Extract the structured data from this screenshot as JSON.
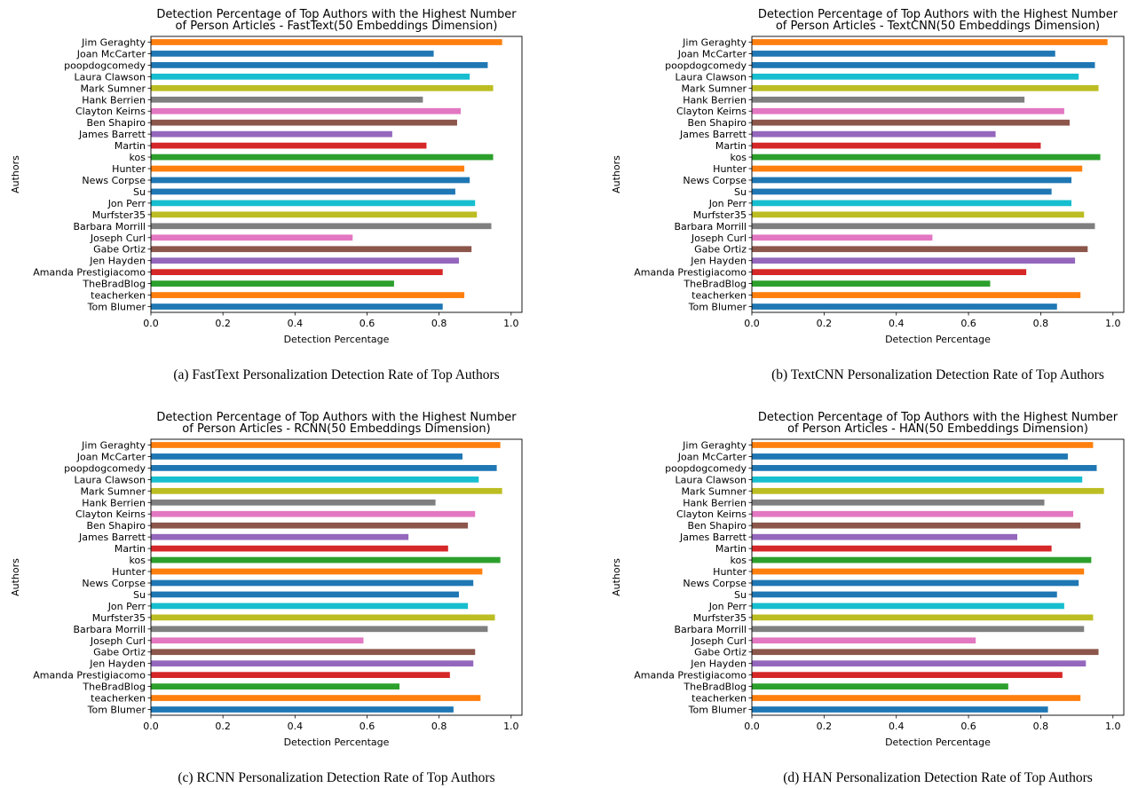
{
  "figure": {
    "colors": [
      "#ff7f0e",
      "#1f77b4",
      "#1f77b4",
      "#17becf",
      "#bcbd22",
      "#7f7f7f",
      "#e377c2",
      "#8c564b",
      "#9467bd",
      "#d62728",
      "#2ca02c",
      "#ff7f0e",
      "#1f77b4",
      "#1f77b4",
      "#17becf",
      "#bcbd22",
      "#7f7f7f",
      "#e377c2",
      "#8c564b",
      "#9467bd",
      "#d62728",
      "#2ca02c",
      "#ff7f0e",
      "#1f77b4"
    ]
  },
  "chart_data": [
    {
      "type": "bar",
      "orientation": "horizontal",
      "title_line1": "Detection Percentage of Top Authors with the Highest Number",
      "title_line2": "of Person Articles - FastText(50 Embeddings Dimension)",
      "xlabel": "Detection Percentage",
      "ylabel": "Authors",
      "caption": "(a) FastText Personalization Detection Rate of Top Authors",
      "xlim": [
        0,
        1.03
      ],
      "xticks": [
        "0.0",
        "0.2",
        "0.4",
        "0.6",
        "0.8",
        "1.0"
      ],
      "grid": false,
      "categories": [
        "Jim Geraghty",
        "Joan McCarter",
        "poopdogcomedy",
        "Laura Clawson",
        "Mark Sumner",
        "Hank Berrien",
        "Clayton Keirns",
        "Ben Shapiro",
        "James Barrett",
        "Martin",
        "kos",
        "Hunter",
        "News Corpse",
        "Su",
        "Jon Perr",
        "Murfster35",
        "Barbara Morrill",
        "Joseph Curl",
        "Gabe Ortiz",
        "Jen Hayden",
        "Amanda Prestigiacomo",
        "TheBradBlog",
        "teacherken",
        "Tom Blumer"
      ],
      "values": [
        0.975,
        0.785,
        0.935,
        0.885,
        0.95,
        0.755,
        0.86,
        0.85,
        0.67,
        0.765,
        0.95,
        0.87,
        0.885,
        0.845,
        0.9,
        0.905,
        0.945,
        0.56,
        0.89,
        0.855,
        0.81,
        0.675,
        0.87,
        0.81
      ]
    },
    {
      "type": "bar",
      "orientation": "horizontal",
      "title_line1": "Detection Percentage of Top Authors with the Highest Number",
      "title_line2": "of Person Articles - TextCNN(50 Embeddings Dimension)",
      "xlabel": "Detection Percentage",
      "ylabel": "Authors",
      "caption": "(b) TextCNN Personalization Detection Rate of Top Authors",
      "xlim": [
        0,
        1.03
      ],
      "xticks": [
        "0.0",
        "0.2",
        "0.4",
        "0.6",
        "0.8",
        "1.0"
      ],
      "grid": false,
      "categories": [
        "Jim Geraghty",
        "Joan McCarter",
        "poopdogcomedy",
        "Laura Clawson",
        "Mark Sumner",
        "Hank Berrien",
        "Clayton Keirns",
        "Ben Shapiro",
        "James Barrett",
        "Martin",
        "kos",
        "Hunter",
        "News Corpse",
        "Su",
        "Jon Perr",
        "Murfster35",
        "Barbara Morrill",
        "Joseph Curl",
        "Gabe Ortiz",
        "Jen Hayden",
        "Amanda Prestigiacomo",
        "TheBradBlog",
        "teacherken",
        "Tom Blumer"
      ],
      "values": [
        0.985,
        0.84,
        0.95,
        0.905,
        0.96,
        0.755,
        0.865,
        0.88,
        0.675,
        0.8,
        0.965,
        0.915,
        0.885,
        0.83,
        0.885,
        0.92,
        0.95,
        0.5,
        0.93,
        0.895,
        0.76,
        0.66,
        0.91,
        0.845
      ]
    },
    {
      "type": "bar",
      "orientation": "horizontal",
      "title_line1": "Detection Percentage of Top Authors with the Highest Number",
      "title_line2": "of Person Articles - RCNN(50 Embeddings Dimension)",
      "xlabel": "Detection Percentage",
      "ylabel": "Authors",
      "caption": "(c) RCNN Personalization Detection Rate of Top Authors",
      "xlim": [
        0,
        1.03
      ],
      "xticks": [
        "0.0",
        "0.2",
        "0.4",
        "0.6",
        "0.8",
        "1.0"
      ],
      "grid": false,
      "categories": [
        "Jim Geraghty",
        "Joan McCarter",
        "poopdogcomedy",
        "Laura Clawson",
        "Mark Sumner",
        "Hank Berrien",
        "Clayton Keirns",
        "Ben Shapiro",
        "James Barrett",
        "Martin",
        "kos",
        "Hunter",
        "News Corpse",
        "Su",
        "Jon Perr",
        "Murfster35",
        "Barbara Morrill",
        "Joseph Curl",
        "Gabe Ortiz",
        "Jen Hayden",
        "Amanda Prestigiacomo",
        "TheBradBlog",
        "teacherken",
        "Tom Blumer"
      ],
      "values": [
        0.97,
        0.865,
        0.96,
        0.91,
        0.975,
        0.79,
        0.9,
        0.88,
        0.715,
        0.825,
        0.97,
        0.92,
        0.895,
        0.855,
        0.88,
        0.955,
        0.935,
        0.59,
        0.9,
        0.895,
        0.83,
        0.69,
        0.915,
        0.84
      ]
    },
    {
      "type": "bar",
      "orientation": "horizontal",
      "title_line1": "Detection Percentage of Top Authors with the Highest Number",
      "title_line2": "of Person Articles - HAN(50 Embeddings Dimension)",
      "xlabel": "Detection Percentage",
      "ylabel": "Authors",
      "caption": "(d) HAN Personalization Detection Rate of Top Authors",
      "xlim": [
        0,
        1.03
      ],
      "xticks": [
        "0.0",
        "0.2",
        "0.4",
        "0.6",
        "0.8",
        "1.0"
      ],
      "grid": false,
      "categories": [
        "Jim Geraghty",
        "Joan McCarter",
        "poopdogcomedy",
        "Laura Clawson",
        "Mark Sumner",
        "Hank Berrien",
        "Clayton Keirns",
        "Ben Shapiro",
        "James Barrett",
        "Martin",
        "kos",
        "Hunter",
        "News Corpse",
        "Su",
        "Jon Perr",
        "Murfster35",
        "Barbara Morrill",
        "Joseph Curl",
        "Gabe Ortiz",
        "Jen Hayden",
        "Amanda Prestigiacomo",
        "TheBradBlog",
        "teacherken",
        "Tom Blumer"
      ],
      "values": [
        0.945,
        0.875,
        0.955,
        0.915,
        0.975,
        0.81,
        0.89,
        0.91,
        0.735,
        0.83,
        0.94,
        0.92,
        0.905,
        0.845,
        0.865,
        0.945,
        0.92,
        0.62,
        0.96,
        0.925,
        0.86,
        0.71,
        0.91,
        0.82
      ]
    }
  ]
}
